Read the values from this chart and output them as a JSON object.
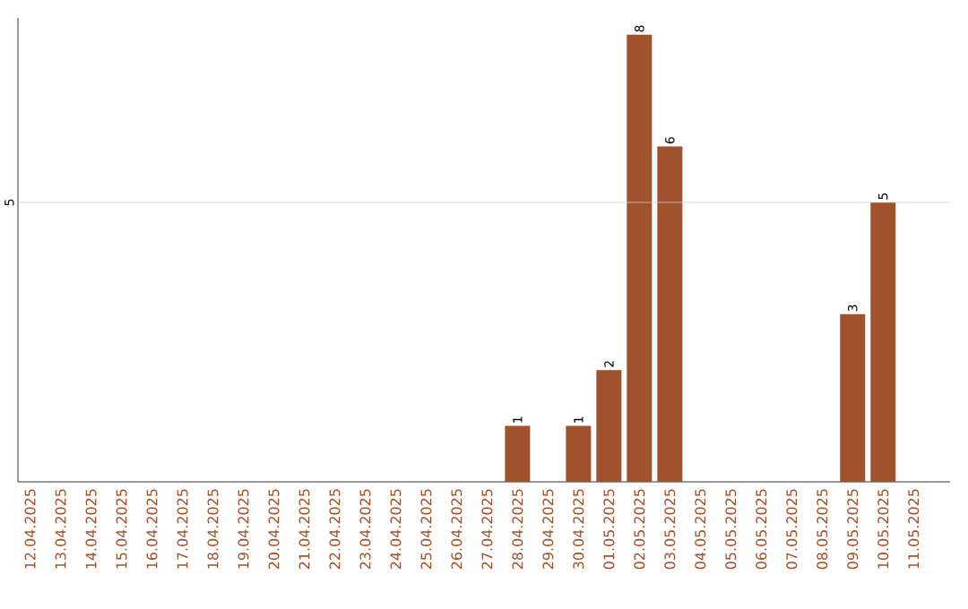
{
  "chart_data": {
    "type": "bar",
    "categories": [
      "12.04.2025",
      "13.04.2025",
      "14.04.2025",
      "15.04.2025",
      "16.04.2025",
      "17.04.2025",
      "18.04.2025",
      "19.04.2025",
      "20.04.2025",
      "21.04.2025",
      "22.04.2025",
      "23.04.2025",
      "24.04.2025",
      "25.04.2025",
      "26.04.2025",
      "27.04.2025",
      "28.04.2025",
      "29.04.2025",
      "30.04.2025",
      "01.05.2025",
      "02.05.2025",
      "03.05.2025",
      "04.05.2025",
      "05.05.2025",
      "06.05.2025",
      "07.05.2025",
      "08.05.2025",
      "09.05.2025",
      "10.05.2025",
      "11.05.2025"
    ],
    "values": [
      null,
      null,
      null,
      null,
      null,
      null,
      null,
      null,
      null,
      null,
      null,
      null,
      null,
      null,
      null,
      null,
      1,
      null,
      1,
      2,
      8,
      6,
      null,
      null,
      null,
      null,
      null,
      3,
      5,
      null
    ],
    "value_labels": [
      null,
      null,
      null,
      null,
      null,
      null,
      null,
      null,
      null,
      null,
      null,
      null,
      null,
      null,
      null,
      null,
      "1",
      null,
      "1",
      "2",
      "8",
      "6",
      null,
      null,
      null,
      null,
      null,
      "3",
      "5",
      null
    ],
    "color": "#a0522d",
    "ylim": [
      0,
      8.3
    ],
    "yticks": [
      5
    ],
    "grid": "y"
  }
}
